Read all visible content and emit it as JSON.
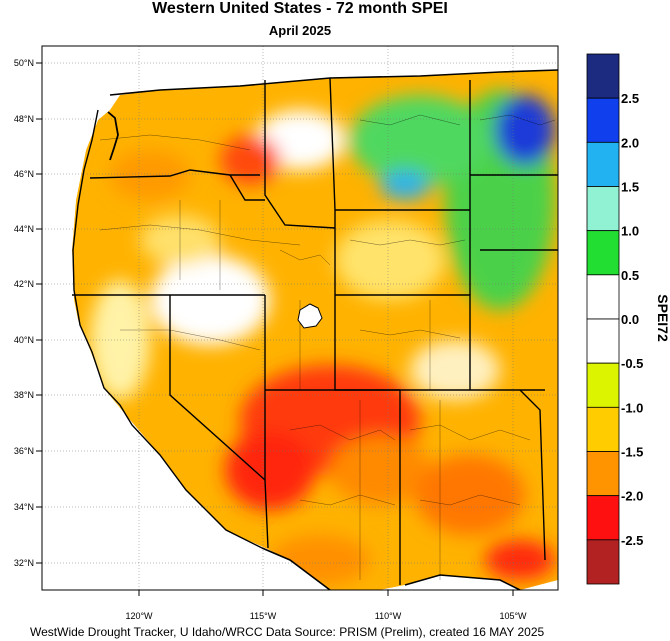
{
  "header": {
    "title": "Western United States - 72 month SPEI",
    "subtitle": "April 2025"
  },
  "map": {
    "lat_labels": [
      "50°N",
      "48°N",
      "46°N",
      "44°N",
      "42°N",
      "40°N",
      "38°N",
      "36°N",
      "34°N",
      "32°N"
    ],
    "lon_labels": [
      "120°W",
      "115°W",
      "110°W",
      "105°W"
    ]
  },
  "legend": {
    "title": "SPEI72",
    "labels": [
      "2.5",
      "2.0",
      "1.5",
      "1.0",
      "0.5",
      "0.0",
      "-0.5",
      "-1.0",
      "-1.5",
      "-2.0",
      "-2.5"
    ],
    "colors": [
      "#1c2a80",
      "#1040ee",
      "#22b2f2",
      "#90f2d2",
      "#22dd32",
      "#ffffff",
      "#ffffff",
      "#ddf400",
      "#ffcc00",
      "#ff9400",
      "#ff1010",
      "#b22222"
    ]
  },
  "footer": {
    "credit": "WestWide Drought Tracker, U Idaho/WRCC Data Source: PRISM (Prelim), created 16 MAY 2025"
  }
}
